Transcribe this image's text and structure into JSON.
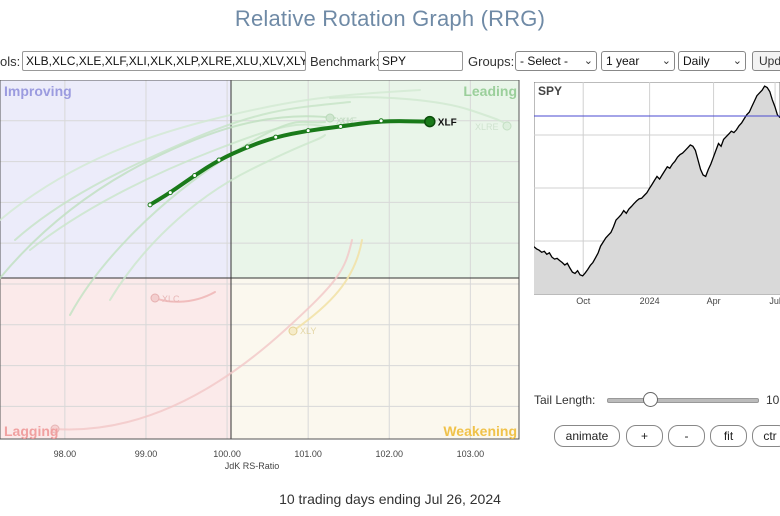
{
  "title": "Relative Rotation Graph (RRG)",
  "toolbar": {
    "symbols_label": "ols:",
    "symbols_value": "XLB,XLC,XLE,XLF,XLI,XLK,XLP,XLRE,XLU,XLV,XLY",
    "benchmark_label": "Benchmark:",
    "benchmark_value": "SPY",
    "groups_label": "Groups:",
    "groups_value": "- Select -",
    "period_value": "1 year",
    "frequency_value": "Daily",
    "update_label": "Upd"
  },
  "rrg": {
    "quadrants": {
      "improving": "Improving",
      "leading": "Leading",
      "weakening": "Weakening",
      "lagging": "Lagging"
    },
    "xlabel": "JdK RS-Ratio",
    "x_ticks": [
      "98.00",
      "99.00",
      "100.00",
      "101.00",
      "102.00",
      "103.00"
    ],
    "colors": {
      "improving": "#ececfa",
      "leading": "#e9f5e9",
      "weakening": "#fbf8ee",
      "lagging": "#fbeaea",
      "highlight": "#1a7a1a"
    },
    "labels": {
      "highlight": "XLF",
      "faded": [
        "XLK",
        "XLE",
        "XLRE",
        "XLC",
        "XLY"
      ]
    }
  },
  "chart_data": [
    {
      "type": "line",
      "title": "RRG",
      "xlabel": "JdK RS-Ratio",
      "ylabel": "",
      "xlim": [
        97.2,
        103.6
      ],
      "ylim": [
        97.6,
        102.0
      ],
      "series": [
        {
          "name": "XLF",
          "x": [
            99.05,
            99.3,
            99.6,
            99.9,
            100.25,
            100.6,
            101.0,
            101.4,
            101.9,
            102.5
          ],
          "y": [
            100.47,
            100.62,
            100.83,
            101.02,
            101.18,
            101.3,
            101.38,
            101.43,
            101.5,
            101.49
          ]
        }
      ]
    },
    {
      "type": "area",
      "title": "SPY",
      "x_ticks": [
        "Oct",
        "2024",
        "Apr",
        "Jul"
      ],
      "values": [
        4495,
        4480,
        4470,
        4455,
        4462,
        4440,
        4451,
        4420,
        4405,
        4410,
        4395,
        4380,
        4362,
        4375,
        4340,
        4310,
        4300,
        4320,
        4290,
        4282,
        4305,
        4330,
        4360,
        4380,
        4415,
        4450,
        4500,
        4530,
        4560,
        4580,
        4600,
        4640,
        4690,
        4710,
        4730,
        4760,
        4740,
        4770,
        4790,
        4810,
        4830,
        4845,
        4850,
        4870,
        4890,
        4920,
        4950,
        4980,
        5010,
        4990,
        5020,
        5050,
        5080,
        5070,
        5100,
        5120,
        5150,
        5170,
        5180,
        5200,
        5220,
        5240,
        5230,
        5200,
        5130,
        5060,
        5020,
        5010,
        5060,
        5100,
        5150,
        5200,
        5250,
        5230,
        5280,
        5300,
        5320,
        5340,
        5330,
        5350,
        5380,
        5400,
        5430,
        5460,
        5480,
        5520,
        5560,
        5600,
        5620,
        5640,
        5670,
        5660,
        5630,
        5570,
        5520,
        5460,
        5440
      ]
    }
  ],
  "spy_panel": {
    "label": "SPY",
    "colors": {
      "fill": "#d9d9d9",
      "line": "#000000",
      "ref": "#4a4ad0"
    }
  },
  "controls": {
    "tail_length_label": "Tail Length:",
    "tail_length_value": "10",
    "tail_length_fraction": 0.28,
    "animate_label": "animate",
    "plus_label": "+",
    "minus_label": "-",
    "fit_label": "fit",
    "center_label": "ctr"
  },
  "footer": "10 trading days ending Jul 26, 2024"
}
